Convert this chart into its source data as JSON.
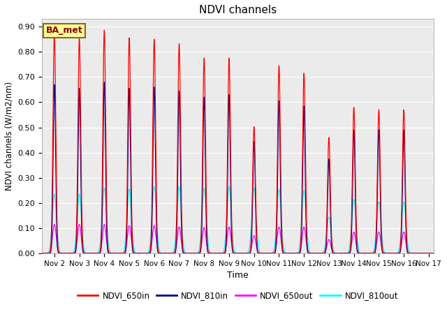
{
  "title": "NDVI channels",
  "xlabel": "Time",
  "ylabel": "NDVI channels (W/m2/nm)",
  "annotation": "BA_met",
  "ylim": [
    0.0,
    0.93
  ],
  "yticks": [
    0.0,
    0.1,
    0.2,
    0.3,
    0.4,
    0.5,
    0.6,
    0.7,
    0.8,
    0.9
  ],
  "colors": {
    "NDVI_650in": "#FF0000",
    "NDVI_810in": "#00008B",
    "NDVI_650out": "#FF00FF",
    "NDVI_810out": "#00FFFF"
  },
  "background_color": "#EBEBEB",
  "peaks": {
    "days": [
      2,
      3,
      4,
      5,
      6,
      7,
      8,
      9,
      10,
      11,
      12,
      13,
      14,
      15,
      16
    ],
    "NDVI_650in": [
      0.878,
      0.855,
      0.886,
      0.856,
      0.85,
      0.832,
      0.775,
      0.775,
      0.503,
      0.745,
      0.715,
      0.46,
      0.58,
      0.57,
      0.57
    ],
    "NDVI_810in": [
      0.67,
      0.655,
      0.68,
      0.655,
      0.66,
      0.645,
      0.62,
      0.63,
      0.445,
      0.605,
      0.585,
      0.375,
      0.49,
      0.49,
      0.49
    ],
    "NDVI_650out": [
      0.115,
      0.115,
      0.115,
      0.11,
      0.11,
      0.105,
      0.103,
      0.105,
      0.07,
      0.105,
      0.105,
      0.055,
      0.085,
      0.085,
      0.085
    ],
    "NDVI_810out": [
      0.235,
      0.235,
      0.26,
      0.255,
      0.265,
      0.265,
      0.26,
      0.265,
      0.26,
      0.255,
      0.25,
      0.145,
      0.215,
      0.205,
      0.205
    ]
  },
  "spike_widths": {
    "NDVI_650in": 0.055,
    "NDVI_810in": 0.048,
    "NDVI_650out": 0.072,
    "NDVI_810out": 0.085
  },
  "xtick_labels": [
    "Nov 2",
    "Nov 3",
    "Nov 4",
    "Nov 5",
    "Nov 6",
    "Nov 7",
    "Nov 8",
    "Nov 9",
    "Nov 10",
    "Nov 11",
    "Nov 12",
    "Nov 13",
    "Nov 14",
    "Nov 15",
    "Nov 16",
    "Nov 17"
  ],
  "xtick_positions": [
    2,
    3,
    4,
    5,
    6,
    7,
    8,
    9,
    10,
    11,
    12,
    13,
    14,
    15,
    16,
    17
  ],
  "xlim": [
    1.5,
    17.2
  ]
}
